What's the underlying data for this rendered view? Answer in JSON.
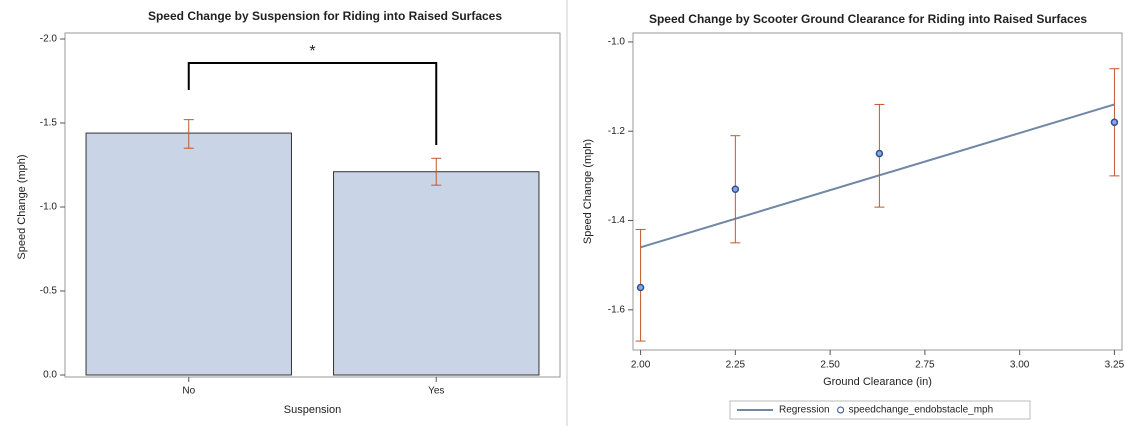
{
  "chart_data": [
    {
      "type": "bar",
      "title": "Speed Change by Suspension for Riding into Raised Surfaces",
      "x_label": "Suspension",
      "y_label": "Speed Change (mph)",
      "categories": [
        "No",
        "Yes"
      ],
      "values": [
        -1.44,
        -1.21
      ],
      "lower": [
        -1.52,
        -1.29
      ],
      "upper": [
        -1.35,
        -1.13
      ],
      "color": "#c9d5e6",
      "error_color": "#c0592b",
      "ylim": [
        0,
        -2.0
      ],
      "yticks": [
        {
          "value": -2.0,
          "label": "-2.0"
        },
        {
          "value": -1.5,
          "label": "-1.5"
        },
        {
          "value": -1.0,
          "label": "-1.0"
        },
        {
          "value": -0.5,
          "label": "-0.5"
        },
        {
          "value": 0,
          "label": "0.0"
        }
      ],
      "annotation": "*"
    },
    {
      "type": "scatter",
      "title": "Speed Change by Scooter Ground Clearance for Riding into Raised Surfaces",
      "x_label": "Ground Clearance (in)",
      "y_label": "Speed Change (mph)",
      "xlim": [
        1.98,
        3.27
      ],
      "xticks": [
        {
          "value": 2.0,
          "label": "2.00"
        },
        2.25,
        {
          "value": 2.5,
          "label": "2.50"
        },
        2.75,
        {
          "value": 3.0,
          "label": "3.00"
        },
        3.25
      ],
      "ylim": [
        -1.69,
        -0.98
      ],
      "yticks": [
        -1.6,
        -1.4,
        -1.2,
        {
          "value": -1.0,
          "label": "-1.0"
        }
      ],
      "series": [
        {
          "name": "Regression",
          "kind": "line",
          "color": "#6f88a6",
          "x": [
            2.0,
            3.25
          ],
          "values": [
            -1.46,
            -1.14
          ]
        },
        {
          "name": "speedchange_endobstacle_mph",
          "kind": "points",
          "color": "#2f4f9f",
          "error_color": "#c0592b",
          "x": [
            2.0,
            2.25,
            2.63,
            3.25
          ],
          "values": [
            -1.55,
            -1.33,
            -1.25,
            -1.18
          ],
          "lower": [
            -1.67,
            -1.45,
            -1.37,
            -1.3
          ],
          "upper": [
            -1.42,
            -1.21,
            -1.14,
            -1.06
          ]
        }
      ]
    }
  ]
}
